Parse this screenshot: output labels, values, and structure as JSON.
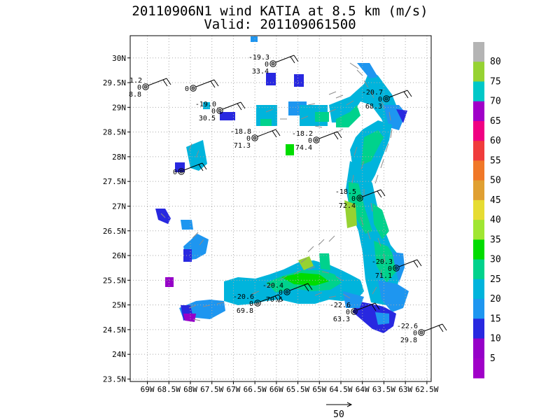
{
  "title": {
    "line1": "20110906N1 wind KATIA at 8.5 km (m/s)",
    "line2": "Valid: 201109061500"
  },
  "map": {
    "lon_ticks": [
      "69W",
      "68.5W",
      "68W",
      "67.5W",
      "67W",
      "66.5W",
      "66W",
      "65.5W",
      "65W",
      "64.5W",
      "64W",
      "63.5W",
      "63W",
      "62.5W"
    ],
    "lat_ticks": [
      "30N",
      "29.5N",
      "29N",
      "28.5N",
      "28N",
      "27.5N",
      "27N",
      "26.5N",
      "26N",
      "25.5N",
      "25N",
      "24.5N",
      "24N",
      "23.5N"
    ],
    "extent": {
      "lon_min": -69.4,
      "lon_max": -62.4,
      "lat_min": 23.45,
      "lat_max": 30.45
    }
  },
  "colorbar": {
    "labels": [
      "80",
      "75",
      "70",
      "65",
      "60",
      "55",
      "50",
      "45",
      "40",
      "35",
      "30",
      "25",
      "20",
      "15",
      "10",
      "5"
    ],
    "colors": [
      "#b4b4b4",
      "#96d232",
      "#00c8c8",
      "#a000c8",
      "#f00082",
      "#f03c3c",
      "#f07828",
      "#e0a032",
      "#e6dc32",
      "#a0e632",
      "#00dc00",
      "#00d28c",
      "#00b4dc",
      "#1e96f0",
      "#2828e0",
      "#9600c8",
      "#a000c8"
    ]
  },
  "stations": [
    {
      "temp": "-19.3",
      "zero": "0",
      "value": "33.4"
    },
    {
      "temp": "1.2",
      "zero": "0",
      "value": "8.8"
    },
    {
      "temp": "",
      "zero": "0",
      "value": ""
    },
    {
      "temp": "-20.7",
      "zero": "0",
      "value": "68.3"
    },
    {
      "temp": "-19.0",
      "zero": "0",
      "value": "30.5"
    },
    {
      "temp": "-18.8",
      "zero": "0",
      "value": "71.3"
    },
    {
      "temp": "-18.2",
      "zero": "0",
      "value": "74.4"
    },
    {
      "temp": "",
      "zero": "0",
      "value": ""
    },
    {
      "temp": "-18.5",
      "zero": "0",
      "value": "72.4"
    },
    {
      "temp": "-20.3",
      "zero": "0",
      "value": "71.1"
    },
    {
      "temp": "-20.4",
      "zero": "0",
      "value": "70.6"
    },
    {
      "temp": "-20.6",
      "zero": "0",
      "value": "69.8"
    },
    {
      "temp": "-22.6",
      "zero": "0",
      "value": "63.3"
    },
    {
      "temp": "-22.6",
      "zero": "0",
      "value": "29.8"
    }
  ],
  "reference_vector": {
    "label": "50"
  }
}
